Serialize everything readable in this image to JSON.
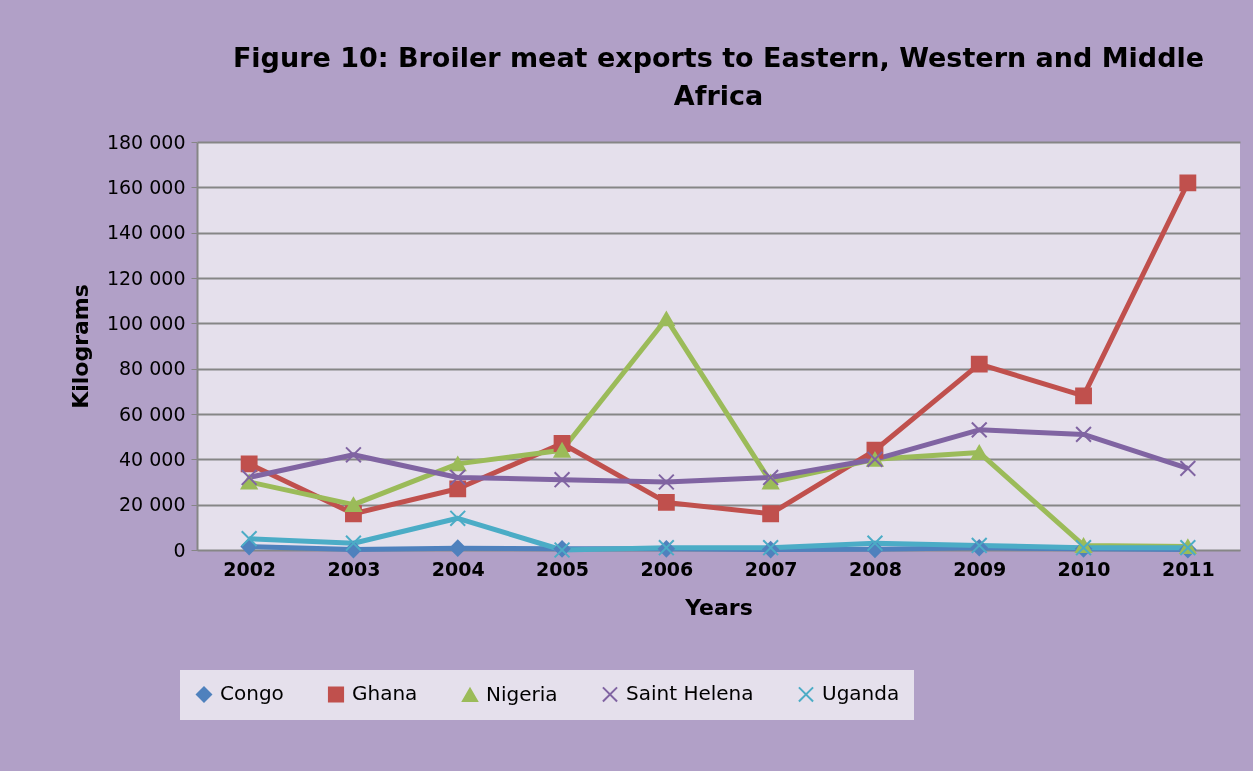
{
  "chart_data": {
    "type": "line",
    "title": "Figure 10: Broiler meat exports to Eastern, Western and Middle Africa",
    "xlabel": "Years",
    "ylabel": "Kilograms",
    "categories": [
      "2002",
      "2003",
      "2004",
      "2005",
      "2006",
      "2007",
      "2008",
      "2009",
      "2010",
      "2011"
    ],
    "series": [
      {
        "name": "Congo",
        "color": "#4f81bd",
        "marker": "diamond",
        "values": [
          1500,
          200,
          800,
          500,
          500,
          200,
          300,
          1000,
          500,
          200
        ]
      },
      {
        "name": "Ghana",
        "color": "#c0504d",
        "marker": "square",
        "values": [
          38000,
          16000,
          27000,
          47000,
          21000,
          16000,
          44000,
          82000,
          68000,
          162000
        ]
      },
      {
        "name": "Nigeria",
        "color": "#9bbb59",
        "marker": "triangle",
        "values": [
          30000,
          20000,
          38000,
          44000,
          102000,
          30000,
          40000,
          43000,
          2000,
          1500
        ]
      },
      {
        "name": "Saint Helena",
        "color": "#8064a2",
        "marker": "cross",
        "values": [
          32000,
          42000,
          32000,
          31000,
          30000,
          32000,
          40000,
          53000,
          51000,
          36000
        ]
      },
      {
        "name": "Uganda",
        "color": "#4bacc6",
        "marker": "cross",
        "values": [
          5000,
          3000,
          14000,
          0,
          1000,
          1000,
          3000,
          2000,
          1000,
          1000
        ]
      }
    ],
    "ylim": [
      0,
      180000
    ],
    "yticks": [
      {
        "value": 0,
        "label": "0"
      },
      {
        "value": 20000,
        "label": "20 000"
      },
      {
        "value": 40000,
        "label": "40 000"
      },
      {
        "value": 60000,
        "label": "60 000"
      },
      {
        "value": 80000,
        "label": "80 000"
      },
      {
        "value": 100000,
        "label": "100 000"
      },
      {
        "value": 120000,
        "label": "120 000"
      },
      {
        "value": 140000,
        "label": "140 000"
      },
      {
        "value": 160000,
        "label": "160 000"
      },
      {
        "value": 180000,
        "label": "180 000"
      }
    ],
    "grid": "y",
    "legend": "bottom"
  }
}
